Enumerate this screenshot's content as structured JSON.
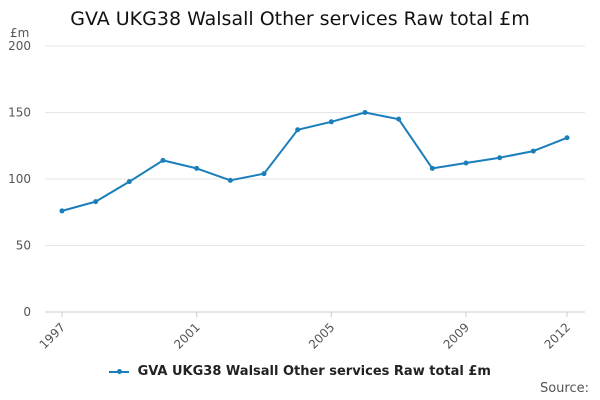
{
  "colors": {
    "series": "#1a7ebb",
    "grid": "#e6e6e6",
    "axis_text": "#555555"
  },
  "chart_data": {
    "type": "line",
    "title": "GVA UKG38 Walsall Other services Raw total £m",
    "ylabel": "£m",
    "xlabel": "",
    "ylim": [
      0,
      200
    ],
    "yticks": [
      0,
      50,
      100,
      150,
      200
    ],
    "x": [
      1997,
      1998,
      1999,
      2000,
      2001,
      2002,
      2003,
      2004,
      2005,
      2006,
      2007,
      2008,
      2009,
      2010,
      2011,
      2012
    ],
    "xtick_labels": [
      1997,
      2001,
      2005,
      2009,
      2012
    ],
    "grid": true,
    "legend_position": "bottom",
    "series": [
      {
        "name": "GVA UKG38 Walsall Other services Raw total £m",
        "values": [
          76,
          83,
          98,
          114,
          108,
          99,
          104,
          137,
          143,
          150,
          145,
          108,
          112,
          116,
          121,
          131
        ]
      }
    ]
  },
  "source_label": "Source:"
}
